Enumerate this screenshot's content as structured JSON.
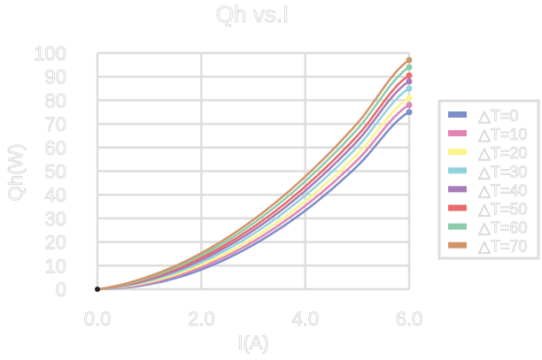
{
  "chart_data": {
    "type": "line",
    "title": "Qh vs.I",
    "xlabel": "I(A)",
    "ylabel": "Qh(W)",
    "xlim": [
      0,
      6
    ],
    "ylim": [
      0,
      100
    ],
    "xticks": [
      "0.0",
      "2.0",
      "4.0",
      "6.0"
    ],
    "yticks": [
      "0",
      "10",
      "20",
      "30",
      "40",
      "50",
      "60",
      "70",
      "80",
      "90",
      "100"
    ],
    "grid": true,
    "legend_position": "right",
    "x": [
      0,
      1,
      2,
      3,
      4,
      5,
      6
    ],
    "series": [
      {
        "name": "△T=0",
        "color": "#7b8ec9",
        "values": [
          0,
          2.1,
          8.3,
          18.8,
          33.3,
          52.1,
          75
        ]
      },
      {
        "name": "△T=10",
        "color": "#e384b6",
        "values": [
          0,
          2.6,
          9.3,
          20.2,
          35.3,
          54.6,
          78
        ]
      },
      {
        "name": "△T=20",
        "color": "#fdf48a",
        "values": [
          0,
          3.1,
          10.3,
          21.7,
          37.3,
          57.1,
          81
        ]
      },
      {
        "name": "△T=30",
        "color": "#92d2df",
        "values": [
          0,
          3.6,
          11.4,
          23.4,
          39.7,
          60.2,
          85
        ]
      },
      {
        "name": "△T=40",
        "color": "#a87bb6",
        "values": [
          0,
          4.1,
          12.4,
          24.9,
          41.7,
          62.7,
          88
        ]
      },
      {
        "name": "△T=50",
        "color": "#e96b6c",
        "values": [
          0,
          4.5,
          13.3,
          26.3,
          43.5,
          64.9,
          90.5
        ]
      },
      {
        "name": "△T=60",
        "color": "#8dcbab",
        "values": [
          0,
          5.0,
          14.3,
          27.9,
          45.7,
          67.7,
          94
        ]
      },
      {
        "name": "△T=70",
        "color": "#d3946b",
        "values": [
          0,
          5.5,
          15.3,
          29.4,
          47.7,
          70.2,
          97
        ]
      }
    ]
  }
}
